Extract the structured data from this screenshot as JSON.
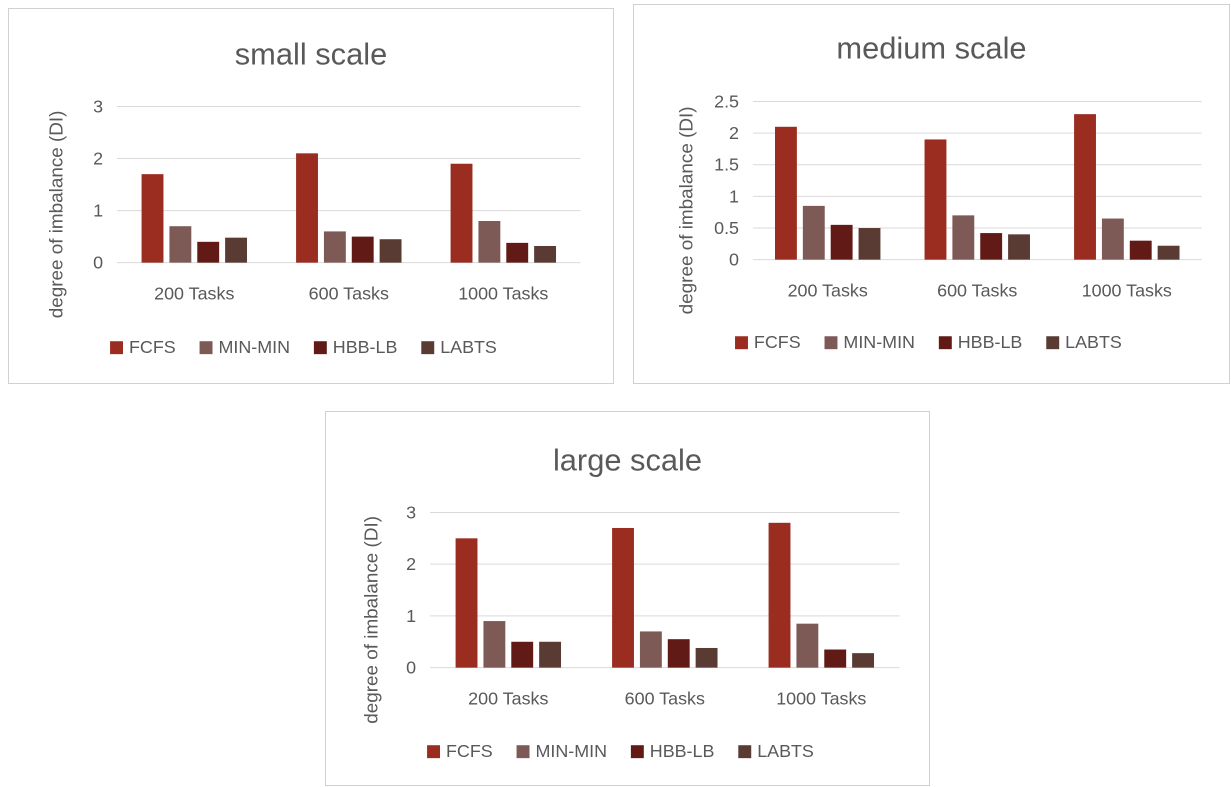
{
  "series_colors": [
    "#9b2d20",
    "#7d5a56",
    "#611a15",
    "#5a3b33"
  ],
  "gridline_color": "#d9d9d9",
  "chart_data": [
    {
      "type": "bar",
      "title": "small scale",
      "ylabel": "degree of imbalance (DI)",
      "xlabel": "",
      "categories": [
        "200 Tasks",
        "600 Tasks",
        "1000 Tasks"
      ],
      "ylim": [
        0,
        3
      ],
      "yticks": [
        0,
        1,
        2,
        3
      ],
      "ytick_labels": [
        "0",
        "1",
        "2",
        "3"
      ],
      "grid": true,
      "legend": "bottom",
      "series": [
        {
          "name": "FCFS",
          "values": [
            1.7,
            2.1,
            1.9
          ]
        },
        {
          "name": "MIN-MIN",
          "values": [
            0.7,
            0.6,
            0.8
          ]
        },
        {
          "name": "HBB-LB",
          "values": [
            0.4,
            0.5,
            0.38
          ]
        },
        {
          "name": "LABTS",
          "values": [
            0.48,
            0.45,
            0.32
          ]
        }
      ]
    },
    {
      "type": "bar",
      "title": "medium scale",
      "ylabel": "degree of imbalance (DI)",
      "xlabel": "",
      "categories": [
        "200 Tasks",
        "600 Tasks",
        "1000 Tasks"
      ],
      "ylim": [
        0,
        2.5
      ],
      "yticks": [
        0,
        0.5,
        1,
        1.5,
        2,
        2.5
      ],
      "ytick_labels": [
        "0",
        "0.5",
        "1",
        "1.5",
        "2",
        "2.5"
      ],
      "grid": true,
      "legend": "bottom",
      "series": [
        {
          "name": "FCFS",
          "values": [
            2.1,
            1.9,
            2.3
          ]
        },
        {
          "name": "MIN-MIN",
          "values": [
            0.85,
            0.7,
            0.65
          ]
        },
        {
          "name": "HBB-LB",
          "values": [
            0.55,
            0.42,
            0.3
          ]
        },
        {
          "name": "LABTS",
          "values": [
            0.5,
            0.4,
            0.22
          ]
        }
      ]
    },
    {
      "type": "bar",
      "title": "large scale",
      "ylabel": "degree of imbalance (DI)",
      "xlabel": "",
      "categories": [
        "200 Tasks",
        "600 Tasks",
        "1000 Tasks"
      ],
      "ylim": [
        0,
        3
      ],
      "yticks": [
        0,
        1,
        2,
        3
      ],
      "ytick_labels": [
        "0",
        "1",
        "2",
        "3"
      ],
      "grid": true,
      "legend": "bottom",
      "series": [
        {
          "name": "FCFS",
          "values": [
            2.5,
            2.7,
            2.8
          ]
        },
        {
          "name": "MIN-MIN",
          "values": [
            0.9,
            0.7,
            0.85
          ]
        },
        {
          "name": "HBB-LB",
          "values": [
            0.5,
            0.55,
            0.35
          ]
        },
        {
          "name": "LABTS",
          "values": [
            0.5,
            0.38,
            0.28
          ]
        }
      ]
    }
  ]
}
